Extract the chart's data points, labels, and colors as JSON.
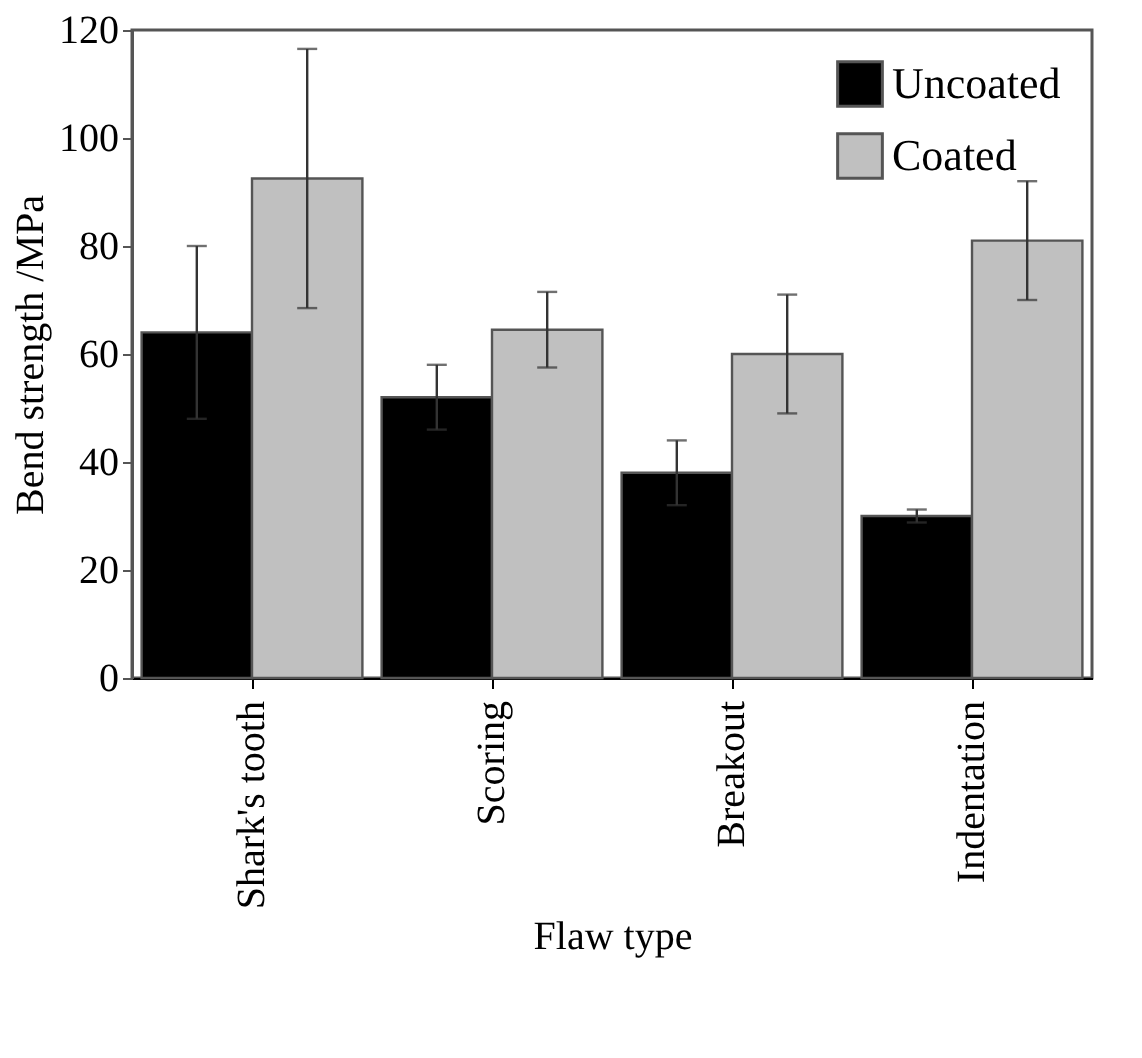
{
  "chart_data": {
    "type": "bar",
    "xlabel": "Flaw type",
    "ylabel": "Bend strength /MPa",
    "categories": [
      "Shark's tooth",
      "Scoring",
      "Breakout",
      "Indentation"
    ],
    "series": [
      {
        "name": "Uncoated",
        "color": "#000000",
        "values": [
          64,
          52,
          38,
          30
        ],
        "errors": [
          16,
          6,
          6,
          1.2
        ]
      },
      {
        "name": "Coated",
        "color": "#c0c0c0",
        "values": [
          92.5,
          64.5,
          60,
          81
        ],
        "errors": [
          24,
          7,
          11,
          11
        ]
      }
    ],
    "ylim": [
      0,
      120
    ],
    "yticks": [
      0,
      20,
      40,
      60,
      80,
      100,
      120
    ],
    "grid": false,
    "legend": "top right"
  }
}
